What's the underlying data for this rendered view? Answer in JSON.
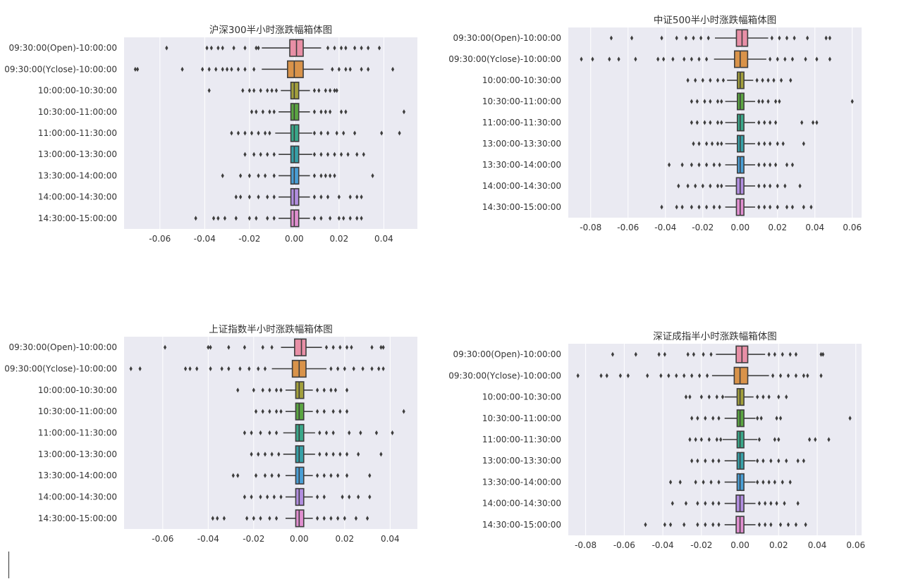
{
  "colors": {
    "plot_bg": "#eaeaf2",
    "grid": "#ffffff",
    "box_edge": "#3d3d3d",
    "palette": [
      "#e88fa6",
      "#d9934a",
      "#a3a03c",
      "#5ba642",
      "#3aa88a",
      "#37a1a8",
      "#4a9fd6",
      "#b28ee0",
      "#e18fd0"
    ]
  },
  "chart_data": [
    {
      "type": "box",
      "title": "沪深300半小时涨跌幅箱体图",
      "xlim": [
        -0.076,
        0.055
      ],
      "xticks": [
        -0.06,
        -0.04,
        -0.02,
        0.0,
        0.02,
        0.04
      ],
      "xtick_labels": [
        "-0.06",
        "-0.04",
        "-0.02",
        "0.00",
        "0.02",
        "0.04"
      ],
      "categories": [
        "09:30:00(Open)-10:00:00",
        "09:30:00(Yclose)-10:00:00",
        "10:00:00-10:30:00",
        "10:30:00-11:00:00",
        "11:00:00-11:30:00",
        "13:00:00-13:30:00",
        "13:30:00-14:00:00",
        "14:00:00-14:30:00",
        "14:30:00-15:00:00"
      ],
      "boxes": [
        {
          "q1": -0.002,
          "median": 0.001,
          "q3": 0.004,
          "wlo": -0.0145,
          "whi": 0.012,
          "outliers": [
            -0.057,
            -0.039,
            -0.037,
            -0.034,
            -0.032,
            -0.027,
            -0.022,
            -0.017,
            -0.016,
            0.015,
            0.018,
            0.021,
            0.023,
            0.027,
            0.03,
            0.033,
            0.038
          ]
        },
        {
          "q1": -0.003,
          "median": 0.0,
          "q3": 0.004,
          "wlo": -0.0145,
          "whi": 0.013,
          "outliers": [
            -0.071,
            -0.07,
            -0.05,
            -0.041,
            -0.038,
            -0.035,
            -0.032,
            -0.03,
            -0.028,
            -0.025,
            -0.022,
            -0.018,
            0.017,
            0.02,
            0.023,
            0.025,
            0.03,
            0.033,
            0.044
          ]
        },
        {
          "q1": -0.0015,
          "median": 0.0,
          "q3": 0.002,
          "wlo": -0.006,
          "whi": 0.007,
          "outliers": [
            -0.038,
            -0.023,
            -0.02,
            -0.018,
            -0.015,
            -0.012,
            -0.01,
            -0.008,
            0.009,
            0.011,
            0.014,
            0.016,
            0.018,
            0.019
          ]
        },
        {
          "q1": -0.0015,
          "median": 0.0,
          "q3": 0.002,
          "wlo": -0.007,
          "whi": 0.007,
          "outliers": [
            -0.019,
            -0.017,
            -0.014,
            -0.011,
            -0.009,
            0.009,
            0.012,
            0.014,
            0.016,
            0.021,
            0.023,
            0.049
          ]
        },
        {
          "q1": -0.0015,
          "median": 0.0,
          "q3": 0.002,
          "wlo": -0.0085,
          "whi": 0.008,
          "outliers": [
            -0.028,
            -0.025,
            -0.022,
            -0.019,
            -0.016,
            -0.013,
            -0.011,
            0.009,
            0.012,
            0.015,
            0.019,
            0.022,
            0.027,
            0.039,
            0.047
          ]
        },
        {
          "q1": -0.0015,
          "median": 0.0,
          "q3": 0.002,
          "wlo": -0.007,
          "whi": 0.008,
          "outliers": [
            -0.022,
            -0.018,
            -0.015,
            -0.012,
            -0.009,
            0.009,
            0.012,
            0.015,
            0.018,
            0.021,
            0.024,
            0.028,
            0.031
          ]
        },
        {
          "q1": -0.0015,
          "median": 0.0,
          "q3": 0.002,
          "wlo": -0.007,
          "whi": 0.007,
          "outliers": [
            -0.032,
            -0.024,
            -0.02,
            -0.016,
            -0.013,
            -0.009,
            0.009,
            0.012,
            0.014,
            0.016,
            0.018,
            0.035
          ]
        },
        {
          "q1": -0.0015,
          "median": 0.0,
          "q3": 0.002,
          "wlo": -0.007,
          "whi": 0.007,
          "outliers": [
            -0.026,
            -0.024,
            -0.02,
            -0.016,
            -0.012,
            -0.009,
            0.009,
            0.012,
            0.015,
            0.02,
            0.025,
            0.028,
            0.03
          ]
        },
        {
          "q1": -0.0015,
          "median": 0.0,
          "q3": 0.002,
          "wlo": -0.007,
          "whi": 0.007,
          "outliers": [
            -0.044,
            -0.036,
            -0.034,
            -0.031,
            -0.026,
            -0.02,
            -0.017,
            -0.012,
            -0.009,
            0.009,
            0.012,
            0.016,
            0.02,
            0.022,
            0.025,
            0.028,
            0.03
          ]
        }
      ]
    },
    {
      "type": "box",
      "title": "中证500半小时涨跌幅箱体图",
      "xlim": [
        -0.092,
        0.065
      ],
      "xticks": [
        -0.08,
        -0.06,
        -0.04,
        -0.02,
        0.0,
        0.02,
        0.04,
        0.06
      ],
      "xtick_labels": [
        "-0.08",
        "-0.06",
        "-0.04",
        "-0.02",
        "0.00",
        "0.02",
        "0.04",
        "0.06"
      ],
      "categories": [
        "09:30:00(Open)-10:00:00",
        "09:30:00(Yclose)-10:00:00",
        "10:00:00-10:30:00",
        "10:30:00-11:00:00",
        "11:00:00-11:30:00",
        "13:00:00-13:30:00",
        "13:30:00-14:00:00",
        "14:00:00-14:30:00",
        "14:30:00-15:00:00"
      ],
      "boxes": [
        {
          "q1": -0.002,
          "median": 0.001,
          "q3": 0.004,
          "wlo": -0.0135,
          "whi": 0.015,
          "outliers": [
            -0.069,
            -0.058,
            -0.042,
            -0.034,
            -0.029,
            -0.025,
            -0.021,
            -0.017,
            0.017,
            0.021,
            0.025,
            0.029,
            0.036,
            0.046,
            0.048
          ]
        },
        {
          "q1": -0.003,
          "median": 0.0,
          "q3": 0.004,
          "wlo": -0.014,
          "whi": 0.014,
          "outliers": [
            -0.085,
            -0.079,
            -0.07,
            -0.065,
            -0.056,
            -0.044,
            -0.041,
            -0.036,
            -0.03,
            -0.026,
            -0.022,
            -0.018,
            0.016,
            0.02,
            0.024,
            0.028,
            0.035,
            0.041,
            0.048
          ]
        },
        {
          "q1": -0.0015,
          "median": 0.0,
          "q3": 0.002,
          "wlo": -0.007,
          "whi": 0.007,
          "outliers": [
            -0.028,
            -0.024,
            -0.02,
            -0.016,
            -0.012,
            -0.009,
            0.009,
            0.012,
            0.015,
            0.018,
            0.022,
            0.027
          ]
        },
        {
          "q1": -0.0015,
          "median": 0.0,
          "q3": 0.002,
          "wlo": -0.008,
          "whi": 0.008,
          "outliers": [
            -0.026,
            -0.023,
            -0.019,
            -0.016,
            -0.012,
            -0.01,
            0.01,
            0.012,
            0.015,
            0.019,
            0.021,
            0.06
          ]
        },
        {
          "q1": -0.0015,
          "median": 0.0,
          "q3": 0.002,
          "wlo": -0.008,
          "whi": 0.008,
          "outliers": [
            -0.026,
            -0.023,
            -0.019,
            -0.016,
            -0.012,
            -0.01,
            0.01,
            0.013,
            0.016,
            0.019,
            0.033,
            0.039,
            0.041
          ]
        },
        {
          "q1": -0.0015,
          "median": 0.0,
          "q3": 0.002,
          "wlo": -0.008,
          "whi": 0.008,
          "outliers": [
            -0.025,
            -0.022,
            -0.018,
            -0.015,
            -0.012,
            -0.01,
            0.01,
            0.013,
            0.016,
            0.02,
            0.023,
            0.034
          ]
        },
        {
          "q1": -0.0015,
          "median": 0.0,
          "q3": 0.002,
          "wlo": -0.008,
          "whi": 0.008,
          "outliers": [
            -0.038,
            -0.031,
            -0.026,
            -0.022,
            -0.018,
            -0.014,
            -0.011,
            0.01,
            0.013,
            0.016,
            0.019,
            0.025,
            0.028
          ]
        },
        {
          "q1": -0.002,
          "median": 0.0,
          "q3": 0.002,
          "wlo": -0.008,
          "whi": 0.008,
          "outliers": [
            -0.033,
            -0.028,
            -0.024,
            -0.02,
            -0.016,
            -0.012,
            -0.01,
            0.01,
            0.013,
            0.016,
            0.02,
            0.024,
            0.032
          ]
        },
        {
          "q1": -0.002,
          "median": 0.0,
          "q3": 0.002,
          "wlo": -0.008,
          "whi": 0.008,
          "outliers": [
            -0.042,
            -0.034,
            -0.031,
            -0.026,
            -0.022,
            -0.018,
            -0.014,
            -0.011,
            0.01,
            0.013,
            0.016,
            0.02,
            0.025,
            0.028,
            0.034,
            0.038
          ]
        }
      ]
    },
    {
      "type": "box",
      "title": "上证指数半小时涨跌幅箱体图",
      "xlim": [
        -0.077,
        0.052
      ],
      "xticks": [
        -0.06,
        -0.04,
        -0.02,
        0.0,
        0.02,
        0.04
      ],
      "xtick_labels": [
        "-0.06",
        "-0.04",
        "-0.02",
        "0.00",
        "0.02",
        "0.04"
      ],
      "categories": [
        "09:30:00(Open)-10:00:00",
        "09:30:00(Yclose)-10:00:00",
        "10:00:00-10:30:00",
        "10:30:00-11:00:00",
        "11:00:00-11:30:00",
        "13:00:00-13:30:00",
        "13:30:00-14:00:00",
        "14:00:00-14:30:00",
        "14:30:00-15:00:00"
      ],
      "boxes": [
        {
          "q1": -0.002,
          "median": 0.001,
          "q3": 0.003,
          "wlo": -0.008,
          "whi": 0.01,
          "outliers": [
            -0.059,
            -0.04,
            -0.039,
            -0.031,
            -0.024,
            -0.016,
            -0.012,
            0.012,
            0.015,
            0.018,
            0.021,
            0.023,
            0.032,
            0.036,
            0.037
          ]
        },
        {
          "q1": -0.003,
          "median": 0.0,
          "q3": 0.003,
          "wlo": -0.012,
          "whi": 0.012,
          "outliers": [
            -0.074,
            -0.07,
            -0.05,
            -0.048,
            -0.045,
            -0.039,
            -0.034,
            -0.031,
            -0.026,
            -0.022,
            -0.018,
            -0.015,
            0.014,
            0.017,
            0.02,
            0.024,
            0.028,
            0.032,
            0.035,
            0.037
          ]
        },
        {
          "q1": -0.0015,
          "median": 0.0,
          "q3": 0.002,
          "wlo": -0.006,
          "whi": 0.006,
          "outliers": [
            -0.027,
            -0.02,
            -0.016,
            -0.013,
            -0.01,
            -0.008,
            0.008,
            0.011,
            0.014,
            0.016,
            0.021
          ]
        },
        {
          "q1": -0.0015,
          "median": 0.0,
          "q3": 0.002,
          "wlo": -0.006,
          "whi": 0.006,
          "outliers": [
            -0.019,
            -0.016,
            -0.013,
            -0.01,
            -0.008,
            0.008,
            0.011,
            0.015,
            0.018,
            0.021,
            0.046
          ]
        },
        {
          "q1": -0.0015,
          "median": 0.0,
          "q3": 0.002,
          "wlo": -0.007,
          "whi": 0.007,
          "outliers": [
            -0.024,
            -0.021,
            -0.017,
            -0.013,
            -0.01,
            0.009,
            0.012,
            0.015,
            0.022,
            0.027,
            0.034,
            0.041
          ]
        },
        {
          "q1": -0.0015,
          "median": 0.0,
          "q3": 0.002,
          "wlo": -0.007,
          "whi": 0.007,
          "outliers": [
            -0.021,
            -0.018,
            -0.015,
            -0.012,
            -0.009,
            0.009,
            0.012,
            0.015,
            0.018,
            0.021,
            0.026,
            0.036
          ]
        },
        {
          "q1": -0.0015,
          "median": 0.0,
          "q3": 0.002,
          "wlo": -0.006,
          "whi": 0.006,
          "outliers": [
            -0.029,
            -0.027,
            -0.019,
            -0.015,
            -0.012,
            -0.009,
            0.008,
            0.011,
            0.014,
            0.017,
            0.021,
            0.031
          ]
        },
        {
          "q1": -0.0015,
          "median": 0.0,
          "q3": 0.002,
          "wlo": -0.006,
          "whi": 0.006,
          "outliers": [
            -0.024,
            -0.021,
            -0.017,
            -0.014,
            -0.011,
            -0.008,
            0.008,
            0.011,
            0.019,
            0.022,
            0.026,
            0.031
          ]
        },
        {
          "q1": -0.0015,
          "median": 0.0,
          "q3": 0.002,
          "wlo": -0.006,
          "whi": 0.006,
          "outliers": [
            -0.038,
            -0.036,
            -0.033,
            -0.023,
            -0.02,
            -0.017,
            -0.013,
            -0.01,
            0.008,
            0.011,
            0.014,
            0.017,
            0.02,
            0.025,
            0.03
          ]
        }
      ]
    },
    {
      "type": "box",
      "title": "深证成指半小时涨跌幅箱体图",
      "xlim": [
        -0.089,
        0.063
      ],
      "xticks": [
        -0.08,
        -0.06,
        -0.04,
        -0.02,
        0.0,
        0.02,
        0.04,
        0.06
      ],
      "xtick_labels": [
        "-0.08",
        "-0.06",
        "-0.04",
        "-0.02",
        "0.00",
        "0.02",
        "0.04",
        "0.06"
      ],
      "categories": [
        "09:30:00(Open)-10:00:00",
        "09:30:00(Yclose)-10:00:00",
        "10:00:00-10:30:00",
        "10:30:00-11:00:00",
        "11:00:00-11:30:00",
        "13:00:00-13:30:00",
        "13:30:00-14:00:00",
        "14:00:00-14:30:00",
        "14:30:00-15:00:00"
      ],
      "boxes": [
        {
          "q1": -0.002,
          "median": 0.001,
          "q3": 0.004,
          "wlo": -0.0125,
          "whi": 0.013,
          "outliers": [
            -0.066,
            -0.054,
            -0.042,
            -0.039,
            -0.027,
            -0.024,
            -0.019,
            -0.015,
            0.015,
            0.018,
            0.022,
            0.026,
            0.029,
            0.042,
            0.043
          ]
        },
        {
          "q1": -0.003,
          "median": 0.0,
          "q3": 0.004,
          "wlo": -0.0145,
          "whi": 0.015,
          "outliers": [
            -0.084,
            -0.072,
            -0.069,
            -0.062,
            -0.058,
            -0.048,
            -0.041,
            -0.037,
            -0.033,
            -0.029,
            -0.025,
            -0.021,
            -0.017,
            0.017,
            0.021,
            0.025,
            0.029,
            0.033,
            0.035,
            0.042
          ]
        },
        {
          "q1": -0.0015,
          "median": 0.0,
          "q3": 0.002,
          "wlo": -0.008,
          "whi": 0.007,
          "outliers": [
            -0.028,
            -0.026,
            -0.02,
            -0.016,
            -0.012,
            -0.009,
            0.009,
            0.012,
            0.015,
            0.02,
            0.024
          ]
        },
        {
          "q1": -0.0015,
          "median": 0.0,
          "q3": 0.002,
          "wlo": -0.008,
          "whi": 0.008,
          "outliers": [
            -0.025,
            -0.022,
            -0.018,
            -0.014,
            -0.011,
            0.009,
            0.011,
            0.019,
            0.021,
            0.057
          ]
        },
        {
          "q1": -0.0015,
          "median": 0.0,
          "q3": 0.002,
          "wlo": -0.009,
          "whi": 0.009,
          "outliers": [
            -0.026,
            -0.023,
            -0.02,
            -0.016,
            -0.012,
            -0.01,
            0.01,
            0.018,
            0.02,
            0.036,
            0.039,
            0.046
          ]
        },
        {
          "q1": -0.0015,
          "median": 0.0,
          "q3": 0.002,
          "wlo": -0.008,
          "whi": 0.008,
          "outliers": [
            -0.025,
            -0.022,
            -0.018,
            -0.014,
            -0.011,
            0.009,
            0.012,
            0.016,
            0.02,
            0.024,
            0.03,
            0.033
          ]
        },
        {
          "q1": -0.0015,
          "median": 0.0,
          "q3": 0.002,
          "wlo": -0.008,
          "whi": 0.008,
          "outliers": [
            -0.036,
            -0.031,
            -0.023,
            -0.019,
            -0.015,
            -0.011,
            0.009,
            0.012,
            0.015,
            0.018,
            0.022,
            0.026
          ]
        },
        {
          "q1": -0.002,
          "median": 0.0,
          "q3": 0.002,
          "wlo": -0.008,
          "whi": 0.008,
          "outliers": [
            -0.035,
            -0.028,
            -0.022,
            -0.018,
            -0.014,
            -0.011,
            0.01,
            0.013,
            0.016,
            0.019,
            0.023,
            0.03
          ]
        },
        {
          "q1": -0.002,
          "median": 0.0,
          "q3": 0.002,
          "wlo": -0.008,
          "whi": 0.008,
          "outliers": [
            -0.049,
            -0.039,
            -0.036,
            -0.029,
            -0.022,
            -0.018,
            -0.014,
            -0.011,
            0.01,
            0.013,
            0.016,
            0.021,
            0.025,
            0.029,
            0.034
          ]
        }
      ]
    }
  ]
}
